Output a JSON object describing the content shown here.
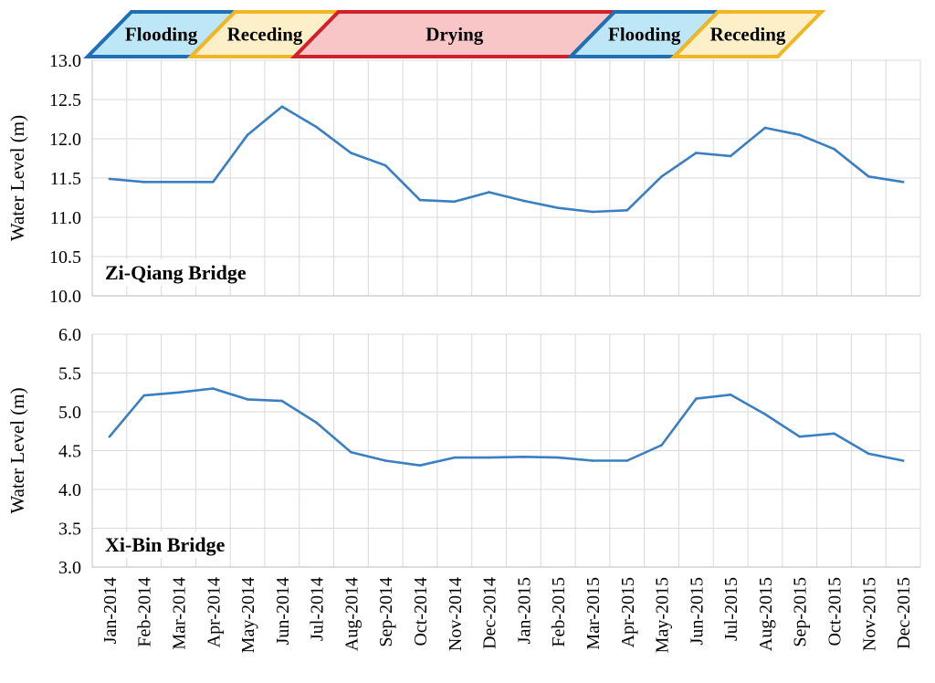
{
  "phases": [
    {
      "label": "Flooding",
      "color_fill": "#bde6f6",
      "color_stroke": "#1f6fb5",
      "start": 0,
      "end": 3
    },
    {
      "label": "Receding",
      "color_fill": "#fdf0c8",
      "color_stroke": "#f2b623",
      "start": 3,
      "end": 6
    },
    {
      "label": "Drying",
      "color_fill": "#f9c6c8",
      "color_stroke": "#d0202a",
      "start": 6,
      "end": 14
    },
    {
      "label": "Flooding",
      "color_fill": "#bde6f6",
      "color_stroke": "#1f6fb5",
      "start": 14,
      "end": 17
    },
    {
      "label": "Receding",
      "color_fill": "#fdf0c8",
      "color_stroke": "#f2b623",
      "start": 17,
      "end": 20
    }
  ],
  "chart_data": [
    {
      "type": "line",
      "title": "Zi-Qiang  Bridge",
      "ylabel": "Water Level (m)",
      "ylim": [
        10.0,
        13.0
      ],
      "yticks": [
        "10.0",
        "10.5",
        "11.0",
        "11.5",
        "12.0",
        "12.5",
        "13.0"
      ],
      "grid": true,
      "x": [
        "Jan-2014",
        "Feb-2014",
        "Mar-2014",
        "Apr-2014",
        "May-2014",
        "Jun-2014",
        "Jul-2014",
        "Aug-2014",
        "Sep-2014",
        "Oct-2014",
        "Nov-2014",
        "Dec-2014",
        "Jan-2015",
        "Feb-2015",
        "Mar-2015",
        "Apr-2015",
        "May-2015",
        "Jun-2015",
        "Jul-2015",
        "Aug-2015",
        "Sep-2015",
        "Oct-2015",
        "Nov-2015",
        "Dec-2015"
      ],
      "series": [
        {
          "color": "#3a7fc1",
          "values": [
            11.49,
            11.45,
            11.45,
            11.45,
            12.05,
            12.41,
            12.15,
            11.82,
            11.66,
            11.22,
            11.2,
            11.32,
            11.21,
            11.12,
            11.07,
            11.09,
            11.52,
            11.82,
            11.78,
            12.14,
            12.05,
            11.87,
            11.52,
            11.45
          ]
        }
      ]
    },
    {
      "type": "line",
      "title": "Xi-Bin Bridge",
      "ylabel": "Water Level (m)",
      "ylim": [
        3.0,
        6.0
      ],
      "yticks": [
        "3.0",
        "3.5",
        "4.0",
        "4.5",
        "5.0",
        "5.5",
        "6.0"
      ],
      "grid": true,
      "x": [
        "Jan-2014",
        "Feb-2014",
        "Mar-2014",
        "Apr-2014",
        "May-2014",
        "Jun-2014",
        "Jul-2014",
        "Aug-2014",
        "Sep-2014",
        "Oct-2014",
        "Nov-2014",
        "Dec-2014",
        "Jan-2015",
        "Feb-2015",
        "Mar-2015",
        "Apr-2015",
        "May-2015",
        "Jun-2015",
        "Jul-2015",
        "Aug-2015",
        "Sep-2015",
        "Oct-2015",
        "Nov-2015",
        "Dec-2015"
      ],
      "series": [
        {
          "color": "#3a7fc1",
          "values": [
            4.68,
            5.21,
            5.25,
            5.3,
            5.16,
            5.14,
            4.86,
            4.48,
            4.37,
            4.31,
            4.41,
            4.41,
            4.42,
            4.41,
            4.37,
            4.37,
            4.57,
            5.17,
            5.22,
            4.97,
            4.68,
            4.72,
            4.46,
            4.37
          ]
        }
      ]
    }
  ]
}
